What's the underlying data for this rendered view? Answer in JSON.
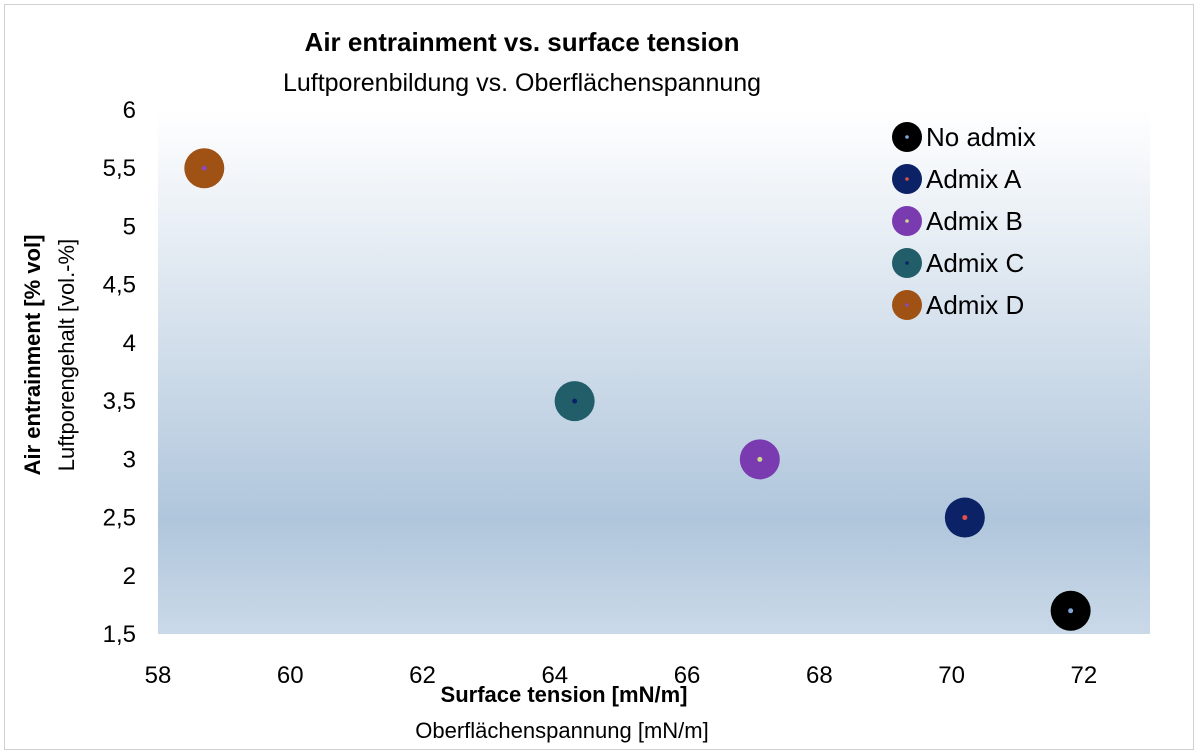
{
  "chart_data": {
    "type": "scatter",
    "title": "Air entrainment vs. surface tension",
    "subtitle": "Luftporenbildung vs. Oberflächenspannung",
    "xlabel": "Surface tension [mN/m]",
    "xlabel_secondary": "Oberflächenspannung [mN/m]",
    "ylabel": "Air entrainment  [% vol]",
    "ylabel_secondary": "Luftporengehalt  [vol.-%]",
    "xlim": [
      58,
      73
    ],
    "ylim": [
      1.5,
      6
    ],
    "x_ticks": [
      58,
      60,
      62,
      64,
      66,
      68,
      70,
      72
    ],
    "y_ticks": [
      1.5,
      2,
      2.5,
      3,
      3.5,
      4,
      4.5,
      5,
      5.5,
      6
    ],
    "x_tick_labels": [
      "58",
      "60",
      "62",
      "64",
      "66",
      "68",
      "70",
      "72"
    ],
    "y_tick_labels": [
      "1,5",
      "2",
      "2,5",
      "3",
      "3,5",
      "4",
      "4,5",
      "5",
      "5,5",
      "6"
    ],
    "grid": false,
    "legend_position": "top-right",
    "series": [
      {
        "name": "No admix",
        "x": 71.8,
        "y": 1.7,
        "color": "#000000",
        "center_color": "#7fa7d6"
      },
      {
        "name": "Admix A",
        "x": 70.2,
        "y": 2.5,
        "color": "#0b2366",
        "center_color": "#e0504a"
      },
      {
        "name": "Admix B",
        "x": 67.1,
        "y": 3.0,
        "color": "#7b3bb0",
        "center_color": "#c9d88a"
      },
      {
        "name": "Admix C",
        "x": 64.3,
        "y": 3.5,
        "color": "#215e6a",
        "center_color": "#0b2366"
      },
      {
        "name": "Admix D",
        "x": 58.7,
        "y": 5.5,
        "color": "#a05214",
        "center_color": "#8a4ab8"
      }
    ]
  }
}
